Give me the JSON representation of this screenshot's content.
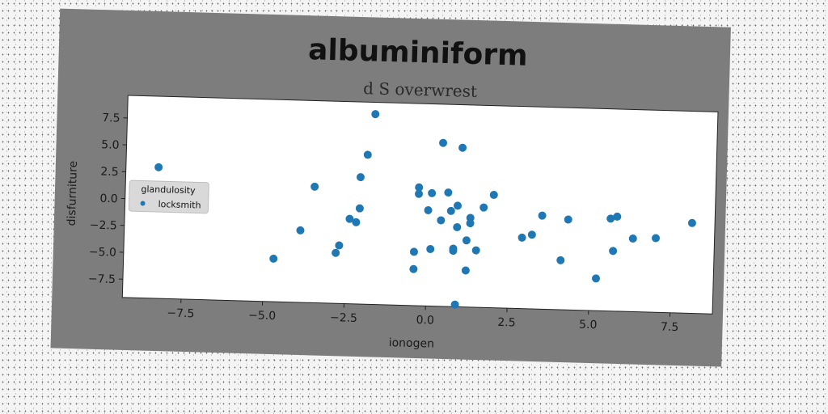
{
  "chart_data": {
    "type": "scatter",
    "title": "albuminiform",
    "subtitle": "d S overwrest",
    "xlabel": "ionogen",
    "ylabel": "disfurniture",
    "xlim": [
      -9.3,
      8.8
    ],
    "ylim": [
      -9.2,
      9.6
    ],
    "xticks": [
      "−7.5",
      "−5.0",
      "−2.5",
      "0.0",
      "2.5",
      "5.0",
      "7.5"
    ],
    "xtick_values": [
      -7.5,
      -5.0,
      -2.5,
      0.0,
      2.5,
      5.0,
      7.5
    ],
    "yticks": [
      "7.5",
      "5.0",
      "2.5",
      "0.0",
      "−2.5",
      "−5.0",
      "−7.5"
    ],
    "ytick_values": [
      7.5,
      5.0,
      2.5,
      0.0,
      -2.5,
      -5.0,
      -7.5
    ],
    "grid": false,
    "legend": {
      "title": "glandulosity",
      "placement": "center-left",
      "entries": [
        "locksmith"
      ]
    },
    "series": [
      {
        "name": "locksmith",
        "color": "#1f77b4",
        "points": [
          [
            -8.3,
            3.0
          ],
          [
            -1.7,
            8.5
          ],
          [
            -1.9,
            4.7
          ],
          [
            -2.1,
            2.6
          ],
          [
            -3.5,
            1.6
          ],
          [
            -2.1,
            -0.3
          ],
          [
            -2.4,
            -1.3
          ],
          [
            -2.2,
            -1.6
          ],
          [
            -3.9,
            -2.5
          ],
          [
            -2.7,
            -3.8
          ],
          [
            -2.8,
            -4.5
          ],
          [
            -4.7,
            -5.2
          ],
          [
            0.4,
            6.0
          ],
          [
            1.0,
            5.6
          ],
          [
            -0.3,
            1.8
          ],
          [
            -0.3,
            1.2
          ],
          [
            0.1,
            1.3
          ],
          [
            0.6,
            1.4
          ],
          [
            0.0,
            -0.3
          ],
          [
            0.7,
            -0.3
          ],
          [
            0.9,
            0.2
          ],
          [
            0.4,
            -1.2
          ],
          [
            1.3,
            -0.9
          ],
          [
            1.3,
            -1.4
          ],
          [
            0.9,
            -1.8
          ],
          [
            1.7,
            0.1
          ],
          [
            2.0,
            1.3
          ],
          [
            1.2,
            -3.0
          ],
          [
            1.5,
            -3.9
          ],
          [
            0.8,
            -3.8
          ],
          [
            0.8,
            -4.0
          ],
          [
            0.1,
            -3.9
          ],
          [
            -0.4,
            -4.2
          ],
          [
            -0.4,
            -5.8
          ],
          [
            1.2,
            -5.8
          ],
          [
            0.9,
            -9.0
          ],
          [
            2.9,
            -2.6
          ],
          [
            3.2,
            -2.3
          ],
          [
            3.5,
            -0.5
          ],
          [
            4.3,
            -0.8
          ],
          [
            4.1,
            -4.6
          ],
          [
            5.2,
            -6.2
          ],
          [
            5.6,
            -0.6
          ],
          [
            5.8,
            -0.4
          ],
          [
            5.7,
            -3.6
          ],
          [
            6.3,
            -2.4
          ],
          [
            7.0,
            -2.3
          ],
          [
            8.1,
            -0.8
          ]
        ]
      }
    ]
  }
}
